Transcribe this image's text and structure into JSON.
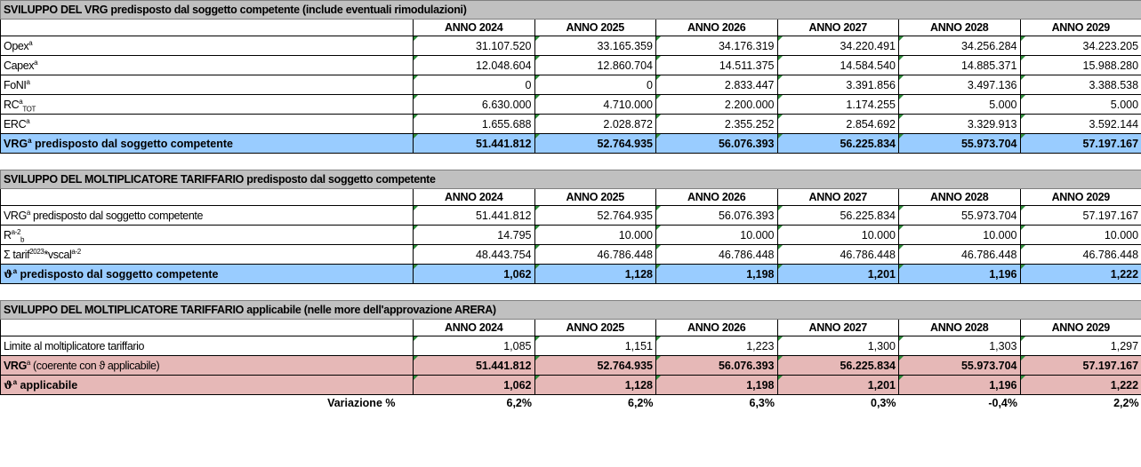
{
  "years": [
    "ANNO 2024",
    "ANNO 2025",
    "ANNO 2026",
    "ANNO 2027",
    "ANNO 2028",
    "ANNO 2029"
  ],
  "section1": {
    "title": "SVILUPPO DEL VRG predisposto dal soggetto competente (include eventuali rimodulazioni)",
    "rows": [
      {
        "label": "Opex",
        "sup": "a",
        "values": [
          "31.107.520",
          "33.165.359",
          "34.176.319",
          "34.220.491",
          "34.256.284",
          "34.223.205"
        ]
      },
      {
        "label": "Capex",
        "sup": "a",
        "values": [
          "12.048.604",
          "12.860.704",
          "14.511.375",
          "14.584.540",
          "14.885.371",
          "15.988.280"
        ]
      },
      {
        "label": "FoNI",
        "sup": "a",
        "values": [
          "0",
          "0",
          "2.833.447",
          "3.391.856",
          "3.497.136",
          "3.388.538"
        ]
      },
      {
        "label": "RC",
        "sup": "a",
        "sub": "TOT",
        "values": [
          "6.630.000",
          "4.710.000",
          "2.200.000",
          "1.174.255",
          "5.000",
          "5.000"
        ]
      },
      {
        "label": "ERC",
        "sup": "a",
        "values": [
          "1.655.688",
          "2.028.872",
          "2.355.252",
          "2.854.692",
          "3.329.913",
          "3.592.144"
        ]
      }
    ],
    "total": {
      "label": "VRG",
      "sup": "a",
      "rest": " predisposto dal soggetto competente",
      "values": [
        "51.441.812",
        "52.764.935",
        "56.076.393",
        "56.225.834",
        "55.973.704",
        "57.197.167"
      ]
    }
  },
  "section2": {
    "title": "SVILUPPO DEL MOLTIPLICATORE TARIFFARIO predisposto dal soggetto competente",
    "rows": [
      {
        "label": "VRG",
        "sup": "a",
        "rest": " predisposto dal soggetto competente",
        "values": [
          "51.441.812",
          "52.764.935",
          "56.076.393",
          "56.225.834",
          "55.973.704",
          "57.197.167"
        ]
      },
      {
        "label": "R",
        "sup": "a-2",
        "sub": "b",
        "values": [
          "14.795",
          "10.000",
          "10.000",
          "10.000",
          "10.000",
          "10.000"
        ]
      },
      {
        "label": "Σ tarif",
        "sup": "2023",
        "rest": "*vscal",
        "sup2": "a-2",
        "values": [
          "48.443.754",
          "46.786.448",
          "46.786.448",
          "46.786.448",
          "46.786.448",
          "46.786.448"
        ]
      }
    ],
    "total": {
      "label": "ϑ",
      "sup": "a",
      "rest": " predisposto dal soggetto competente",
      "values": [
        "1,062",
        "1,128",
        "1,198",
        "1,201",
        "1,196",
        "1,222"
      ]
    }
  },
  "section3": {
    "title": "SVILUPPO DEL MOLTIPLICATORE TARIFFARIO applicabile (nelle more dell'approvazione ARERA)",
    "limit": {
      "label": "Limite al moltiplicatore tariffario",
      "values": [
        "1,085",
        "1,151",
        "1,223",
        "1,300",
        "1,303",
        "1,297"
      ]
    },
    "vrg": {
      "label": "VRG",
      "sup": "a",
      "rest": " (coerente con ϑ applicabile)",
      "values": [
        "51.441.812",
        "52.764.935",
        "56.076.393",
        "56.225.834",
        "55.973.704",
        "57.197.167"
      ]
    },
    "theta": {
      "label": "ϑ",
      "sup": "a",
      "rest": " applicabile",
      "values": [
        "1,062",
        "1,128",
        "1,198",
        "1,201",
        "1,196",
        "1,222"
      ]
    },
    "variation": {
      "label": "Variazione %",
      "values": [
        "6,2%",
        "6,2%",
        "6,3%",
        "0,3%",
        "-0,4%",
        "2,2%"
      ]
    }
  }
}
